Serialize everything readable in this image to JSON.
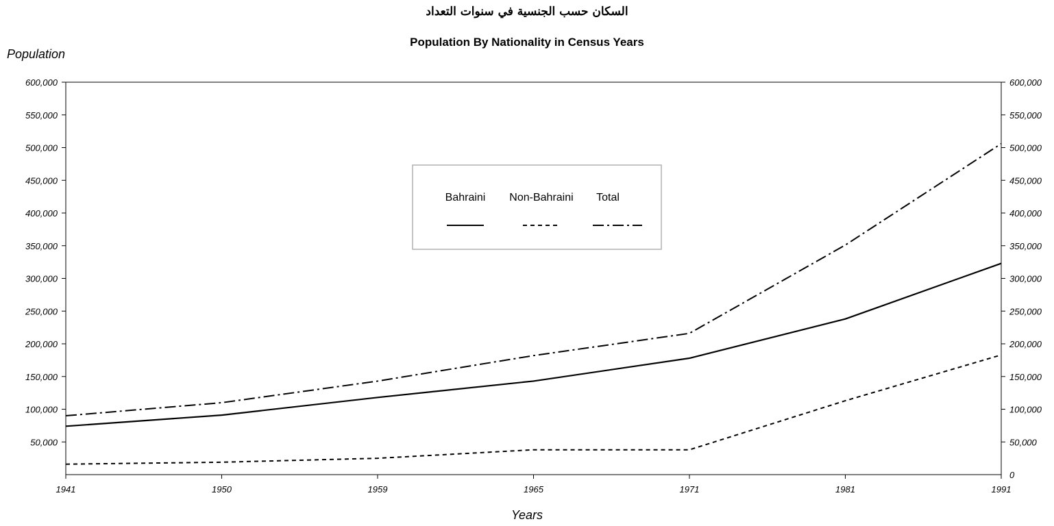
{
  "chart_data": {
    "type": "line",
    "title_arabic": "السكان حسب الجنسية في سنوات التعداد",
    "title": "Population By Nationality in Census Years",
    "ylabel": "Population",
    "xlabel": "Years",
    "categories": [
      "1941",
      "1950",
      "1959",
      "1965",
      "1971",
      "1981",
      "1991"
    ],
    "ylim": [
      0,
      600000
    ],
    "yticks": [
      {
        "value": 50000,
        "label": "50,000"
      },
      {
        "value": 100000,
        "label": "100,000"
      },
      {
        "value": 150000,
        "label": "150,000"
      },
      {
        "value": 200000,
        "label": "200,000"
      },
      {
        "value": 250000,
        "label": "250,000"
      },
      {
        "value": 300000,
        "label": "300,000"
      },
      {
        "value": 350000,
        "label": "350,000"
      },
      {
        "value": 400000,
        "label": "400,000"
      },
      {
        "value": 450000,
        "label": "450,000"
      },
      {
        "value": 500000,
        "label": "500,000"
      },
      {
        "value": 550000,
        "label": "550,000"
      },
      {
        "value": 600000,
        "label": "600,000"
      }
    ],
    "right_axis_bottom_label": "0",
    "grid": false,
    "legend_position": "upper-center",
    "series": [
      {
        "name": "Bahraini",
        "style": "solid",
        "values": [
          74000,
          91000,
          118000,
          143000,
          178000,
          238000,
          323000
        ]
      },
      {
        "name": "Non-Bahraini",
        "style": "dashed",
        "values": [
          16000,
          19000,
          25000,
          38000,
          38000,
          113000,
          183000
        ]
      },
      {
        "name": "Total",
        "style": "dash-dot",
        "values": [
          90000,
          110000,
          143000,
          182000,
          216000,
          351000,
          506000
        ]
      }
    ],
    "colors": {
      "line": "#000000",
      "axis": "#000000",
      "legend_border": "#b0b0b0"
    }
  }
}
